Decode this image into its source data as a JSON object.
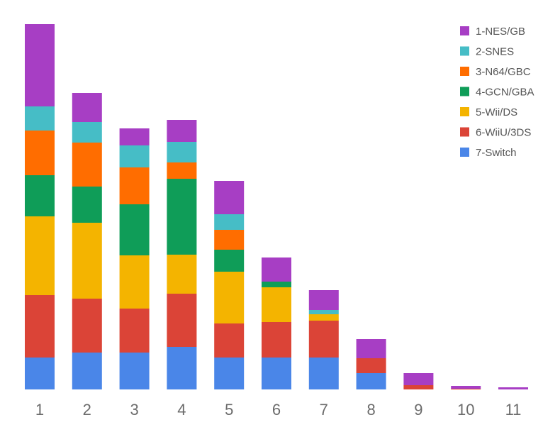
{
  "chart_data": {
    "type": "bar",
    "stacked": true,
    "categories": [
      "1",
      "2",
      "3",
      "4",
      "5",
      "6",
      "7",
      "8",
      "9",
      "10",
      "11"
    ],
    "ylim": [
      0,
      515
    ],
    "grid": false,
    "legend_position": "top-right",
    "series": [
      {
        "name": "7-Switch",
        "color": "#4a86e8",
        "values": [
          45,
          52,
          52,
          60,
          45,
          45,
          45,
          23,
          0,
          0,
          0
        ]
      },
      {
        "name": "6-WiiU/3DS",
        "color": "#db4437",
        "values": [
          88,
          76,
          62,
          75,
          48,
          50,
          52,
          21,
          6,
          1,
          0
        ]
      },
      {
        "name": "5-Wii/DS",
        "color": "#f4b400",
        "values": [
          111,
          107,
          75,
          55,
          73,
          49,
          9,
          0,
          0,
          0,
          0
        ]
      },
      {
        "name": "4-GCN/GBA",
        "color": "#0f9d58",
        "values": [
          58,
          51,
          72,
          107,
          31,
          8,
          0,
          0,
          0,
          0,
          0
        ]
      },
      {
        "name": "3-N64/GBC",
        "color": "#ff6d00",
        "values": [
          63,
          62,
          52,
          23,
          28,
          0,
          0,
          0,
          0,
          0,
          0
        ]
      },
      {
        "name": "2-SNES",
        "color": "#46bdc6",
        "values": [
          34,
          29,
          31,
          29,
          22,
          0,
          6,
          0,
          0,
          0,
          0
        ]
      },
      {
        "name": "1-NES/GB",
        "color": "#a73ec4",
        "values": [
          116,
          41,
          24,
          31,
          47,
          34,
          28,
          27,
          17,
          4,
          3
        ]
      }
    ]
  }
}
